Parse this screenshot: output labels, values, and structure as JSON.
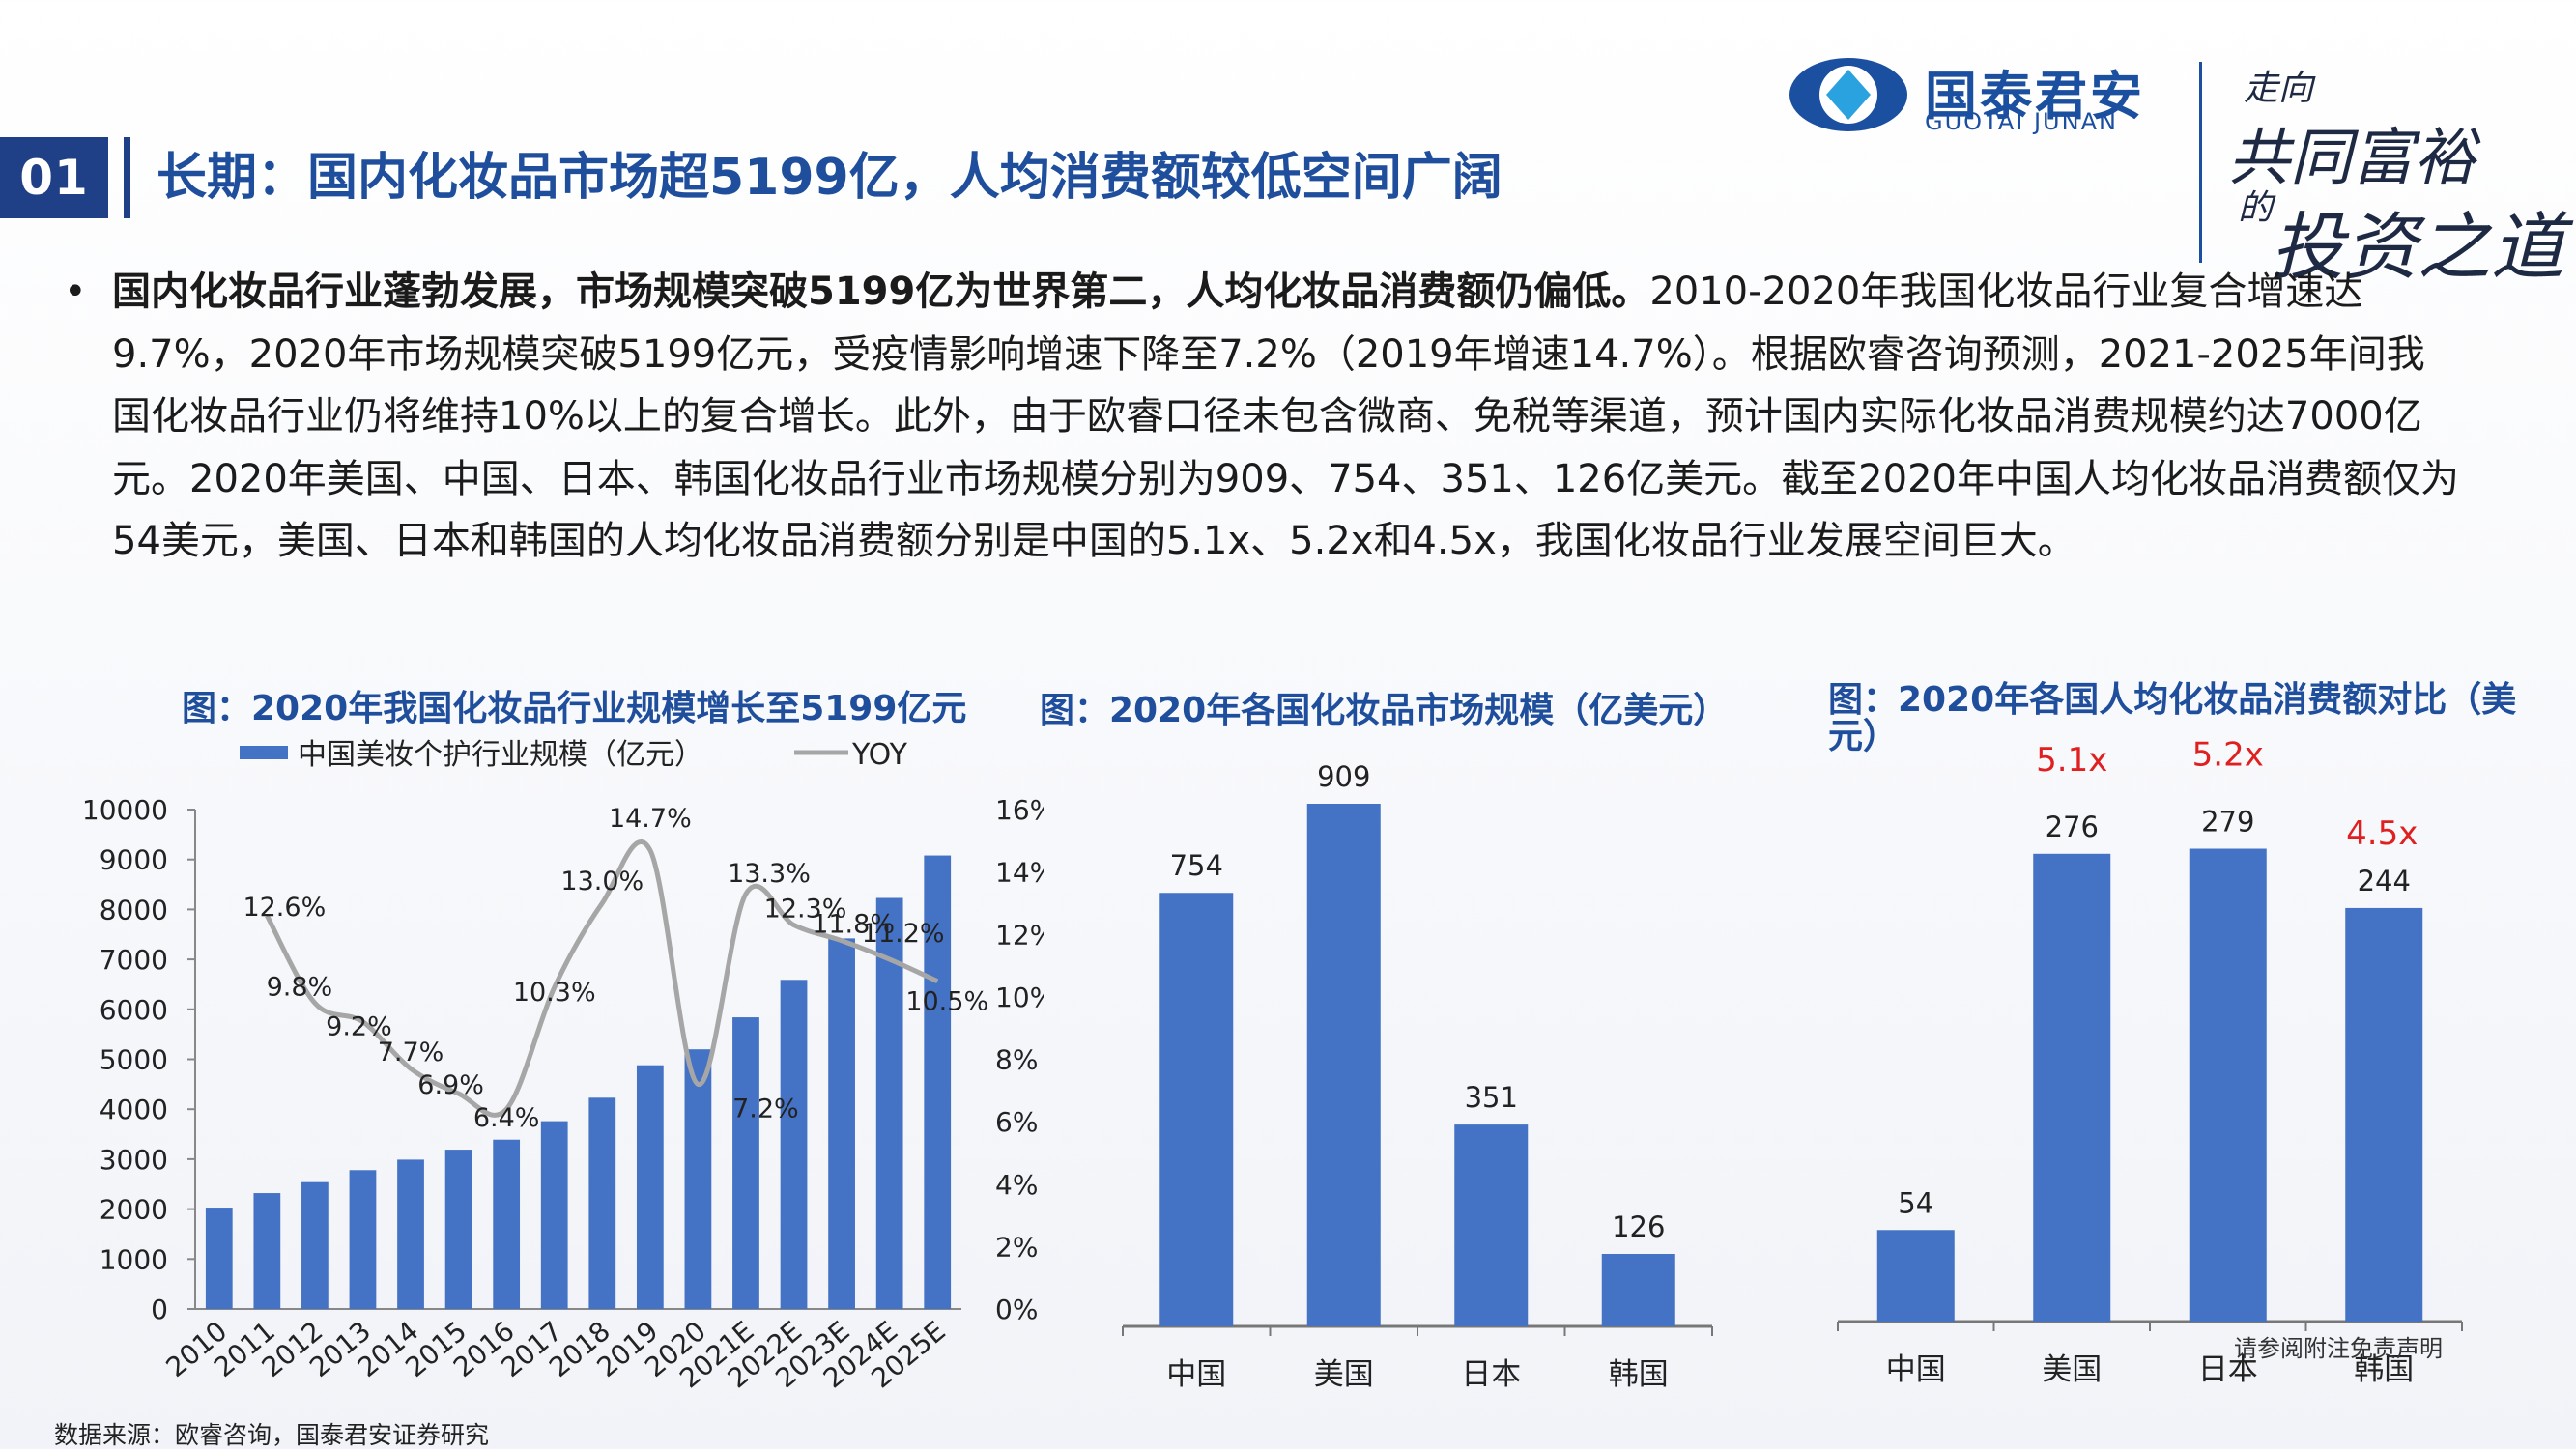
{
  "header": {
    "section_number": "01",
    "title": "长期：国内化妆品市场超5199亿，人均消费额较低空间广阔",
    "logo_cn": "国泰君安",
    "logo_en": "GUOTAI JUNAN",
    "slogan_1": "走向",
    "slogan_2": "共同富裕",
    "slogan_3": "的",
    "slogan_4": "投资之道"
  },
  "body": {
    "bullet": "•",
    "bold_lead": "国内化妆品行业蓬勃发展，市场规模突破5199亿为世界第二，人均化妆品消费额仍偏低。",
    "text": "2010-2020年我国化妆品行业复合增速达9.7%，2020年市场规模突破5199亿元，受疫情影响增速下降至7.2%（2019年增速14.7%）。根据欧睿咨询预测，2021-2025年间我国化妆品行业仍将维持10%以上的复合增长。此外，由于欧睿口径未包含微商、免税等渠道，预计国内实际化妆品消费规模约达7000亿元。2020年美国、中国、日本、韩国化妆品行业市场规模分别为909、754、351、126亿美元。截至2020年中国人均化妆品消费额仅为54美元，美国、日本和韩国的人均化妆品消费额分别是中国的5.1x、5.2x和4.5x，我国化妆品行业发展空间巨大。"
  },
  "colors": {
    "bar": "#4472c4",
    "line": "#a6a6a6",
    "title": "#1f4e9c",
    "multiple": "#e02020",
    "section": "#1f3f86"
  },
  "chart_data": [
    {
      "type": "bar",
      "title": "图：2020年我国化妆品行业规模增长至5199亿元",
      "legend": [
        {
          "name": "中国美妆个护行业规模（亿元）",
          "kind": "bar"
        },
        {
          "name": "YOY",
          "kind": "line"
        }
      ],
      "categories": [
        "2010",
        "2011",
        "2012",
        "2013",
        "2014",
        "2015",
        "2016",
        "2017",
        "2018",
        "2019",
        "2020",
        "2021E",
        "2022E",
        "2023E",
        "2024E",
        "2025E"
      ],
      "series": [
        {
          "name": "中国美妆个护行业规模（亿元）",
          "type": "bar",
          "axis": "left",
          "values": [
            2030,
            2320,
            2540,
            2780,
            2990,
            3190,
            3390,
            3760,
            4230,
            4880,
            5199,
            5840,
            6590,
            7420,
            8230,
            9080
          ]
        },
        {
          "name": "YOY",
          "type": "line",
          "axis": "right",
          "values": [
            null,
            12.6,
            9.8,
            9.2,
            7.7,
            6.9,
            6.4,
            10.3,
            13.0,
            14.7,
            7.2,
            13.3,
            12.3,
            11.8,
            11.2,
            10.5
          ],
          "labels": [
            "",
            "12.6%",
            "9.8%",
            "9.2%",
            "7.7%",
            "6.9%",
            "6.4%",
            "10.3%",
            "13.0%",
            "14.7%",
            "7.2%",
            "13.3%",
            "12.3%",
            "11.8%",
            "11.2%",
            "10.5%"
          ]
        }
      ],
      "ylim_left": [
        0,
        10000
      ],
      "yticks_left": [
        "0",
        "1000",
        "2000",
        "3000",
        "4000",
        "5000",
        "6000",
        "7000",
        "8000",
        "9000",
        "10000"
      ],
      "ylim_right": [
        0,
        16
      ],
      "yticks_right": [
        "0%",
        "2%",
        "4%",
        "6%",
        "8%",
        "10%",
        "12%",
        "14%",
        "16%"
      ],
      "legend_position": "top"
    },
    {
      "type": "bar",
      "title": "图：2020年各国化妆品市场规模（亿美元）",
      "categories": [
        "中国",
        "美国",
        "日本",
        "韩国"
      ],
      "values": [
        754,
        909,
        351,
        126
      ],
      "labels": [
        "754",
        "909",
        "351",
        "126"
      ]
    },
    {
      "type": "bar",
      "title": "图：2020年各国人均化妆品消费额对比（美元）",
      "categories": [
        "中国",
        "美国",
        "日本",
        "韩国"
      ],
      "values": [
        54,
        276,
        279,
        244
      ],
      "labels": [
        "54",
        "276",
        "279",
        "244"
      ],
      "multiples": [
        "",
        "5.1x",
        "5.2x",
        "4.5x"
      ]
    }
  ],
  "footer": {
    "source": "数据来源：欧睿咨询，国泰君安证券研究",
    "disclaimer": "请参阅附注免责声明"
  }
}
